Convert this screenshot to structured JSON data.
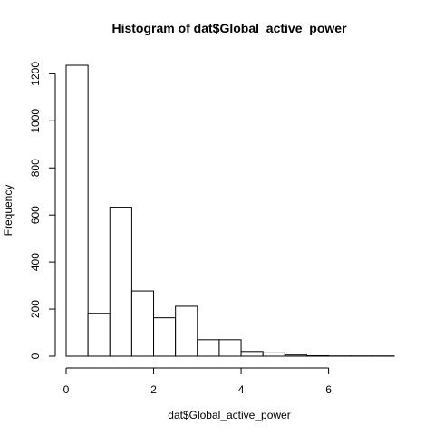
{
  "chart_data": {
    "type": "bar",
    "subtype": "histogram",
    "title": "Histogram of dat$Global_active_power",
    "xlabel": "dat$Global_active_power",
    "ylabel": "Frequency",
    "bin_width": 0.5,
    "bins": [
      {
        "start": 0.0,
        "end": 0.5,
        "count": 1236
      },
      {
        "start": 0.5,
        "end": 1.0,
        "count": 182
      },
      {
        "start": 1.0,
        "end": 1.5,
        "count": 633
      },
      {
        "start": 1.5,
        "end": 2.0,
        "count": 277
      },
      {
        "start": 2.0,
        "end": 2.5,
        "count": 163
      },
      {
        "start": 2.5,
        "end": 3.0,
        "count": 212
      },
      {
        "start": 3.0,
        "end": 3.5,
        "count": 70
      },
      {
        "start": 3.5,
        "end": 4.0,
        "count": 70
      },
      {
        "start": 4.0,
        "end": 4.5,
        "count": 20
      },
      {
        "start": 4.5,
        "end": 5.0,
        "count": 14
      },
      {
        "start": 5.0,
        "end": 5.5,
        "count": 5
      },
      {
        "start": 5.5,
        "end": 6.0,
        "count": 2
      },
      {
        "start": 6.0,
        "end": 6.5,
        "count": 1
      },
      {
        "start": 6.5,
        "end": 7.0,
        "count": 1
      },
      {
        "start": 7.0,
        "end": 7.5,
        "count": 1
      }
    ],
    "xlim": [
      0,
      7.5
    ],
    "ylim": [
      0,
      1236
    ],
    "x_ticks": [
      0,
      2,
      4,
      6
    ],
    "y_ticks": [
      0,
      200,
      400,
      600,
      800,
      1000,
      1200
    ],
    "bar_fill": "#ffffff",
    "bar_stroke": "#000000",
    "grid": false,
    "legend": "none"
  }
}
